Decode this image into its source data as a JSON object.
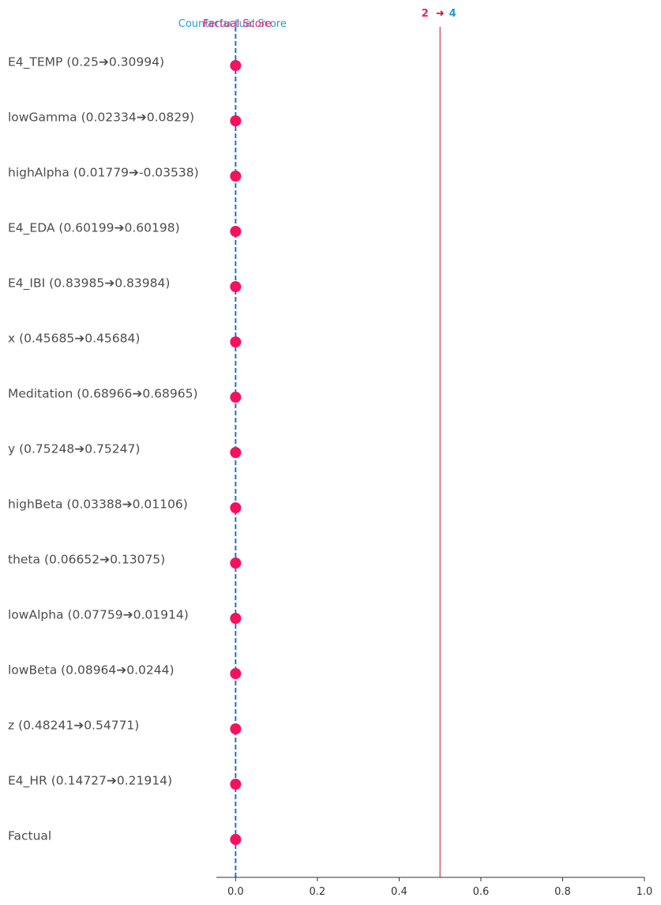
{
  "chart_data": {
    "type": "scatter",
    "features": [
      "E4_TEMP (0.25➔0.30994)",
      "lowGamma (0.02334➔0.0829)",
      "highAlpha (0.01779➔-0.03538)",
      "E4_EDA (0.60199➔0.60198)",
      "E4_IBI (0.83985➔0.83984)",
      "x (0.45685➔0.45684)",
      "Meditation (0.68966➔0.68965)",
      "y (0.75248➔0.75247)",
      "highBeta (0.03388➔0.01106)",
      "theta (0.06652➔0.13075)",
      "lowAlpha (0.07759➔0.01914)",
      "lowBeta (0.08964➔0.0244)",
      "z (0.48241➔0.54771)",
      "E4_HR (0.14727➔0.21914)",
      "Factual"
    ],
    "values": [
      0,
      0,
      0,
      0,
      0,
      0,
      0,
      0,
      0,
      0,
      0,
      0,
      0,
      0,
      0
    ],
    "xlim": [
      -0.047,
      1.0
    ],
    "xticks": [
      "0.0",
      "0.2",
      "0.4",
      "0.6",
      "0.8",
      "1.0"
    ],
    "xtick_values": [
      0.0,
      0.2,
      0.4,
      0.6,
      0.8,
      1.0
    ],
    "threshold": 0.5,
    "counterfactual_score_label": "Counterfactual Score",
    "factual_score_label": "Factual Score",
    "class_from": "2",
    "class_arrow": "➜",
    "class_to": "4",
    "colors": {
      "point": "#f5115f",
      "score_line": "#1e6fd9",
      "threshold_line": "#c8102e",
      "counterfactual_label": "#1e9be0",
      "factual_label": "#f0206a",
      "class_from": "#f0206a",
      "class_arrow": "#c8102e",
      "class_to": "#1e9be0"
    }
  }
}
